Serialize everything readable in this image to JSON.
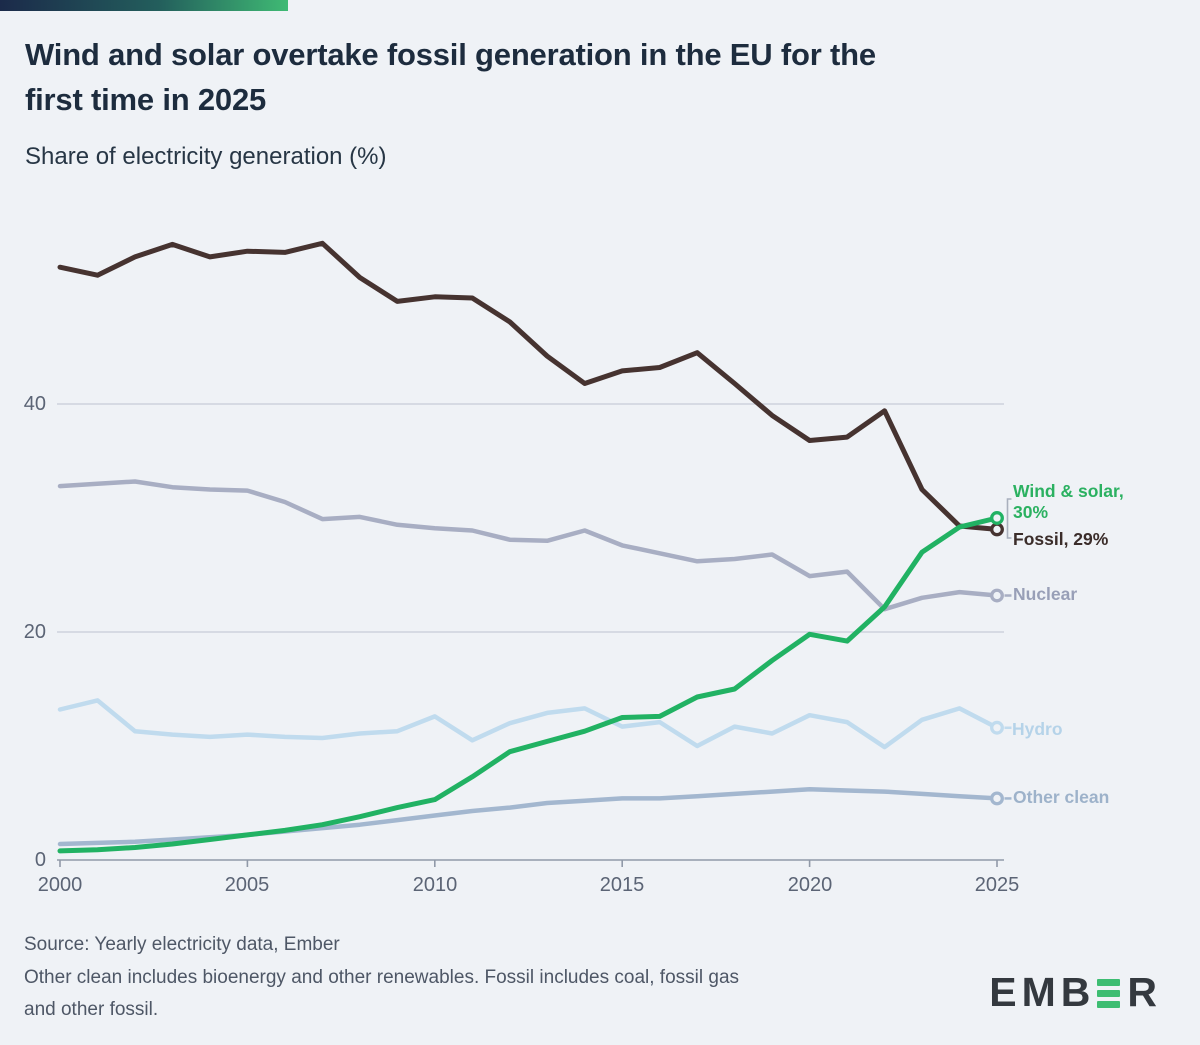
{
  "header": {
    "title_line1": "Wind and solar overtake fossil generation in the EU for the",
    "title_line2": "first time in 2025",
    "subtitle": "Share of electricity generation (%)"
  },
  "footer": {
    "source_line": "Source: Yearly electricity data, Ember",
    "note_line1": "Other clean includes bioenergy and other renewables. Fossil includes coal, fossil gas",
    "note_line2": "and other fossil.",
    "logo_text_left": "EMB",
    "logo_text_right": "R"
  },
  "colors": {
    "background": "#eff2f6",
    "accent_gradient_start": "#1b2a4a",
    "accent_gradient_end": "#3fba74",
    "grid": "#c7ccd8",
    "axis_line": "#9099a8",
    "axis_text": "#5b6475",
    "title_text": "#1d2c3e",
    "footer_text": "#4e5766",
    "logo_dark": "#34393f",
    "logo_green": "#3dbd72"
  },
  "chart_data": {
    "type": "line",
    "title": "Wind and solar overtake fossil generation in the EU for the first time in 2025",
    "subtitle": "Share of electricity generation (%)",
    "xlabel": "",
    "ylabel": "Share of electricity generation (%)",
    "ylim": [
      0,
      57
    ],
    "grid": true,
    "legend_position": "right-end-labels",
    "x": [
      2000,
      2001,
      2002,
      2003,
      2004,
      2005,
      2006,
      2007,
      2008,
      2009,
      2010,
      2011,
      2012,
      2013,
      2014,
      2015,
      2016,
      2017,
      2018,
      2019,
      2020,
      2021,
      2022,
      2023,
      2024,
      2025
    ],
    "x_tick_years": [
      2000,
      2005,
      2010,
      2015,
      2020,
      2025
    ],
    "y_ticks": [
      0,
      20,
      40
    ],
    "grid_values": [
      20,
      40
    ],
    "series": [
      {
        "name": "Other clean",
        "color": "#a3b7cf",
        "label_color": "#9db2ca",
        "line_width": 4.5,
        "connector": true,
        "end_label_lines": [
          "Other clean"
        ],
        "values": [
          1.4,
          1.5,
          1.6,
          1.8,
          2.0,
          2.2,
          2.5,
          2.8,
          3.1,
          3.5,
          3.9,
          4.3,
          4.6,
          5.0,
          5.2,
          5.4,
          5.4,
          5.6,
          5.8,
          6.0,
          6.2,
          6.1,
          6.0,
          5.8,
          5.6,
          5.4
        ]
      },
      {
        "name": "Hydro",
        "color": "#c0dbee",
        "label_color": "#b5d3e9",
        "line_width": 4.5,
        "connector": true,
        "end_label_lines": [
          "Hydro"
        ],
        "values": [
          13.2,
          14.0,
          11.3,
          11.0,
          10.8,
          11.0,
          10.8,
          10.7,
          11.1,
          11.3,
          12.6,
          10.5,
          12.0,
          12.9,
          13.3,
          11.7,
          12.1,
          10.0,
          11.7,
          11.1,
          12.7,
          12.1,
          9.9,
          12.3,
          13.3,
          11.6
        ]
      },
      {
        "name": "Nuclear",
        "color": "#a8aec3",
        "label_color": "#989fb7",
        "line_width": 4.5,
        "connector": true,
        "end_label_lines": [
          "Nuclear"
        ],
        "values": [
          32.8,
          33.0,
          33.2,
          32.7,
          32.5,
          32.4,
          31.4,
          29.9,
          30.1,
          29.4,
          29.1,
          28.9,
          28.1,
          28.0,
          28.9,
          27.6,
          26.9,
          26.2,
          26.4,
          26.8,
          24.9,
          25.3,
          22.0,
          23.0,
          23.5,
          23.2
        ]
      },
      {
        "name": "Fossil",
        "color": "#463330",
        "label_color": "#3b2d2a",
        "line_width": 5,
        "connector": false,
        "end_label_lines": [
          "Fossil, 29%"
        ],
        "values": [
          52.0,
          51.3,
          52.9,
          54.0,
          52.9,
          53.4,
          53.3,
          54.1,
          51.1,
          49.0,
          49.4,
          49.3,
          47.2,
          44.2,
          41.8,
          42.9,
          43.2,
          44.5,
          41.8,
          39.0,
          36.8,
          37.1,
          39.4,
          32.5,
          29.3,
          29.0
        ]
      },
      {
        "name": "Wind & solar",
        "color": "#21b263",
        "label_color": "#2bb161",
        "line_width": 5,
        "connector": false,
        "end_label_lines": [
          "Wind & solar,",
          "30%"
        ],
        "values": [
          0.8,
          0.9,
          1.1,
          1.4,
          1.8,
          2.2,
          2.6,
          3.1,
          3.8,
          4.6,
          5.3,
          7.3,
          9.5,
          10.4,
          11.3,
          12.5,
          12.6,
          14.3,
          15.0,
          17.5,
          19.8,
          19.2,
          22.2,
          27.0,
          29.2,
          30.0
        ]
      }
    ]
  }
}
